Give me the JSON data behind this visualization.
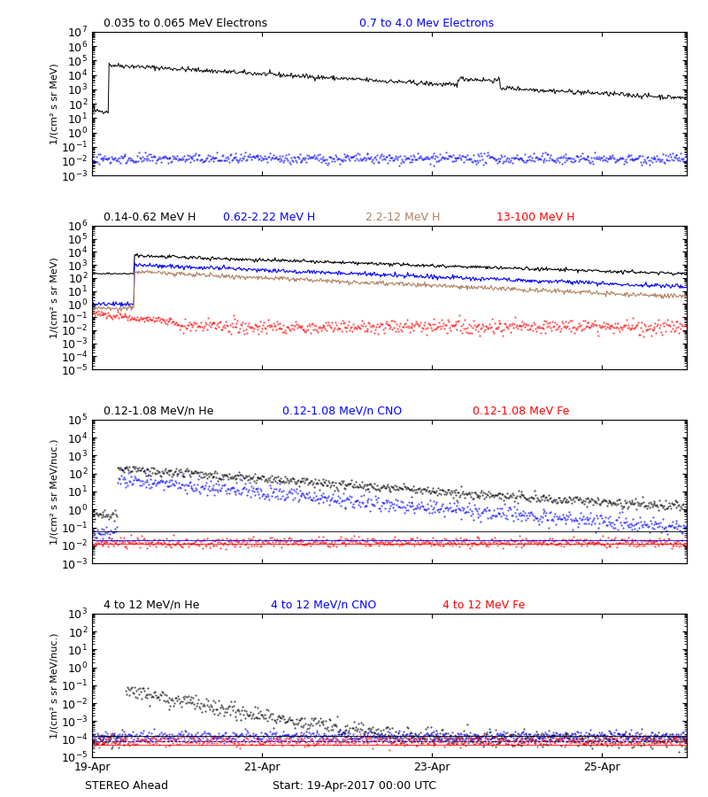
{
  "title_line1_black": "0.035 to 0.065 MeV Electrons",
  "title_line1_blue": "0.7 to 4.0 Mev Electrons",
  "title_line2_black": "0.14-0.62 MeV H",
  "title_line2_blue": "0.62-2.22 MeV H",
  "title_line2_tan": "2.2-12 MeV H",
  "title_line2_red": "13-100 MeV H",
  "title_line3_black": "0.12-1.08 MeV/n He",
  "title_line3_blue": "0.12-1.08 MeV/n CNO",
  "title_line3_red": "0.12-1.08 MeV Fe",
  "title_line4_black": "4 to 12 MeV/n He",
  "title_line4_blue": "4 to 12 MeV/n CNO",
  "title_line4_red": "4 to 12 MeV Fe",
  "xlabel_left": "STEREO Ahead",
  "xlabel_center": "Start: 19-Apr-2017 00:00 UTC",
  "xtick_labels": [
    "19-Apr",
    "21-Apr",
    "23-Apr",
    "25-Apr"
  ],
  "ylabel": "1/(cm² s sr MeV)",
  "ylabel_nuc": "1/(cm² s sr MeV/nuc.)",
  "background_color": "#ffffff",
  "plot_bg": "#ffffff",
  "xmax": 7.0,
  "colors": {
    "black": "#000000",
    "blue": "#0000ff",
    "red": "#ff0000",
    "tan": "#b08060"
  }
}
